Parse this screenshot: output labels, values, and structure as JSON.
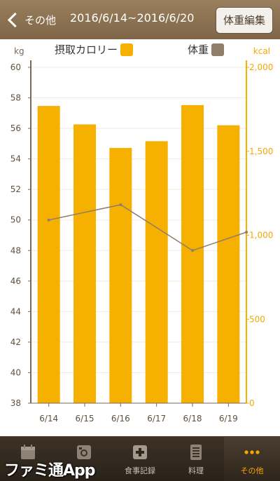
{
  "header": {
    "back_label": "その他",
    "date_range": "2016/6/14~2016/6/20",
    "edit_label": "体重編集"
  },
  "legend": {
    "calories_label": "摂取カロリー",
    "weight_label": "体重",
    "calories_color": "#f5b000",
    "weight_color": "#8f7e6a"
  },
  "axes": {
    "left_unit": "kg",
    "right_unit": "kcal"
  },
  "chart_data": {
    "type": "bar",
    "categories": [
      "6/14",
      "6/15",
      "6/16",
      "6/17",
      "6/18",
      "6/19"
    ],
    "series": [
      {
        "name": "摂取カロリー",
        "type": "bar",
        "axis": "right",
        "values": [
          1770,
          1660,
          1520,
          1560,
          1775,
          1655
        ]
      },
      {
        "name": "体重",
        "type": "line",
        "axis": "left",
        "values": [
          50.0,
          null,
          51.0,
          null,
          48.0,
          null
        ],
        "extends_past_last_category": 49.2
      }
    ],
    "ylim_left": [
      38,
      60
    ],
    "yticks_left": [
      38,
      40,
      42,
      44,
      46,
      48,
      50,
      52,
      54,
      56,
      58,
      60
    ],
    "ylim_right": [
      0,
      2000
    ],
    "yticks_right": [
      0,
      500,
      1000,
      1500,
      2000
    ],
    "ytick_labels_right": [
      "0",
      "500",
      "1,000",
      "1,500",
      "2,000"
    ],
    "bar_color": "#f5b000",
    "line_color": "#8f7e6a",
    "grid": true
  },
  "tabbar": {
    "items": [
      {
        "label": "",
        "icon": "calendar-icon"
      },
      {
        "label": "写真",
        "icon": "photo-icon"
      },
      {
        "label": "食事記録",
        "icon": "plus-icon"
      },
      {
        "label": "料理",
        "icon": "recipe-icon"
      },
      {
        "label": "その他",
        "icon": "more-icon",
        "active": true
      }
    ]
  },
  "watermark": "ファミ通App"
}
